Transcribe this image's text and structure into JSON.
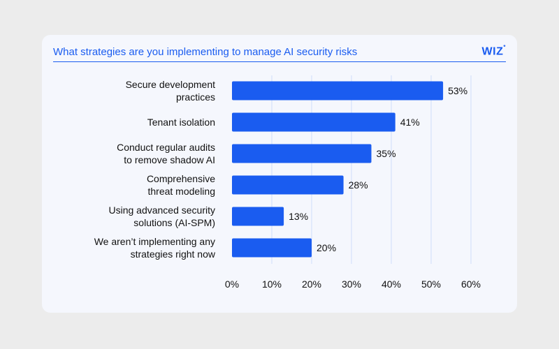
{
  "header": {
    "title": "What strategies are you implementing to manage AI security risks",
    "logo_text": "WIZ",
    "logo_mark": "*"
  },
  "colors": {
    "bar": "#1a5cf0",
    "grid": "#cfdcfa",
    "accent": "#1a5cf0"
  },
  "chart_data": {
    "type": "bar",
    "orientation": "horizontal",
    "title": "What strategies are you implementing to manage AI security risks",
    "categories": [
      [
        "Secure development",
        "practices"
      ],
      [
        "Tenant isolation"
      ],
      [
        "Conduct regular audits",
        "to remove shadow AI"
      ],
      [
        "Comprehensive",
        "threat modeling"
      ],
      [
        "Using advanced security",
        "solutions (AI-SPM)"
      ],
      [
        "We aren’t implementing any",
        "strategies right now"
      ]
    ],
    "values": [
      53,
      41,
      35,
      28,
      13,
      20
    ],
    "data_labels": [
      "53%",
      "41%",
      "35%",
      "28%",
      "13%",
      "20%"
    ],
    "xlim": [
      0,
      60
    ],
    "xticks": [
      0,
      10,
      20,
      30,
      40,
      50,
      60
    ],
    "xtick_labels": [
      "0%",
      "10%",
      "20%",
      "30%",
      "40%",
      "50%",
      "60%"
    ],
    "grid": "vertical"
  }
}
